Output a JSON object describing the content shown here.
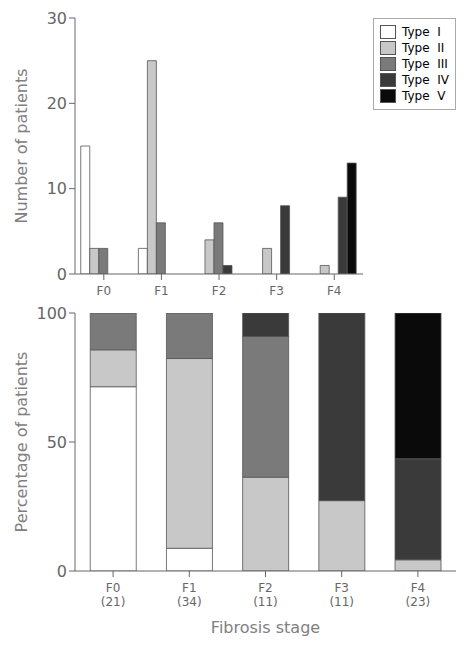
{
  "chart_data": [
    {
      "type": "bar",
      "categories": [
        "F0",
        "F1",
        "F2",
        "F3",
        "F4"
      ],
      "series": [
        {
          "name": "Type  I",
          "color": "#ffffff",
          "values": [
            15,
            3,
            0,
            0,
            0
          ]
        },
        {
          "name": "Type  II",
          "color": "#c8c8c8",
          "values": [
            3,
            25,
            4,
            3,
            1
          ]
        },
        {
          "name": "Type  III",
          "color": "#7a7a7a",
          "values": [
            3,
            6,
            6,
            0,
            0
          ]
        },
        {
          "name": "Type  IV",
          "color": "#3a3a3a",
          "values": [
            0,
            0,
            1,
            8,
            9
          ]
        },
        {
          "name": "Type  V",
          "color": "#0a0a0a",
          "values": [
            0,
            0,
            0,
            0,
            13
          ]
        }
      ],
      "ylabel": "Number of patients",
      "ylim": [
        0,
        30
      ],
      "yticks": [
        0,
        10,
        20,
        30
      ],
      "legend": "upper right"
    },
    {
      "type": "bar",
      "stacked": true,
      "categories": [
        "F0\n(21)",
        "F1\n(34)",
        "F2\n(11)",
        "F3\n(11)",
        "F4\n(23)"
      ],
      "series": [
        {
          "name": "Type  I",
          "color": "#ffffff",
          "values": [
            71.42857142857143,
            8.823529411764707,
            0,
            0,
            0
          ]
        },
        {
          "name": "Type  II",
          "color": "#c8c8c8",
          "values": [
            14.285714285714285,
            73.52941176470588,
            36.36363636363637,
            27.27272727272727,
            4.3478260869565215
          ]
        },
        {
          "name": "Type  III",
          "color": "#7a7a7a",
          "values": [
            14.285714285714285,
            17.647058823529413,
            54.54545454545454,
            0,
            0
          ]
        },
        {
          "name": "Type  IV",
          "color": "#3a3a3a",
          "values": [
            0,
            0,
            9.090909090909092,
            72.72727272727273,
            39.130434782608695
          ]
        },
        {
          "name": "Type  V",
          "color": "#0a0a0a",
          "values": [
            0,
            0,
            0,
            0,
            56.52173913043478
          ]
        }
      ],
      "xlabel": "Fibrosis stage",
      "ylabel": "Percentage of patients",
      "ylim": [
        0,
        100
      ],
      "yticks": [
        0,
        50,
        100
      ]
    }
  ]
}
